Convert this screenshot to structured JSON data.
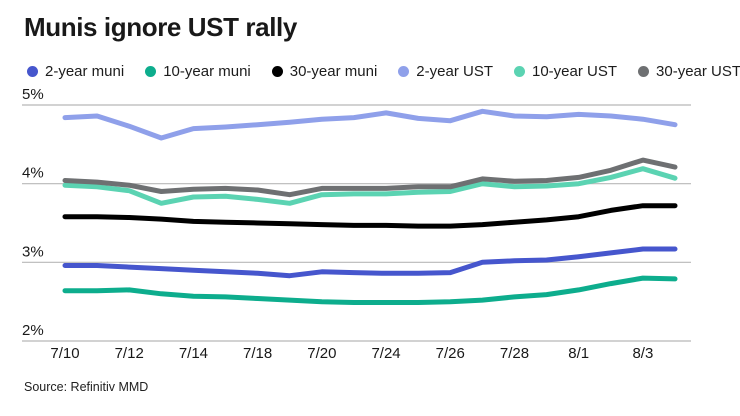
{
  "title": "Munis ignore UST rally",
  "source": "Source: Refinitiv MMD",
  "legend": {
    "items": [
      {
        "label": "2-year muni",
        "color": "#4656cd"
      },
      {
        "label": "10-year muni",
        "color": "#0dad8d"
      },
      {
        "label": "30-year muni",
        "color": "#000000"
      },
      {
        "label": "2-year UST",
        "color": "#8fa0ea"
      },
      {
        "label": "10-year UST",
        "color": "#5bd3b2"
      },
      {
        "label": "30-year UST",
        "color": "#6e7072"
      }
    ]
  },
  "chart_data": {
    "type": "line",
    "title": "Munis ignore UST rally",
    "unit": "%",
    "ylim": [
      2,
      5
    ],
    "grid": "horizontal",
    "grid_color": "#b8b8b8",
    "legend_position": "top",
    "x": [
      "7/10",
      "7/11",
      "7/12",
      "7/13",
      "7/14",
      "7/17",
      "7/18",
      "7/19",
      "7/20",
      "7/21",
      "7/24",
      "7/25",
      "7/26",
      "7/27",
      "7/28",
      "7/31",
      "8/1",
      "8/2",
      "8/3",
      "8/4"
    ],
    "x_ticks": [
      {
        "label": "7/10",
        "index": 0
      },
      {
        "label": "7/12",
        "index": 2
      },
      {
        "label": "7/14",
        "index": 4
      },
      {
        "label": "7/18",
        "index": 6
      },
      {
        "label": "7/20",
        "index": 8
      },
      {
        "label": "7/24",
        "index": 10
      },
      {
        "label": "7/26",
        "index": 12
      },
      {
        "label": "7/28",
        "index": 14
      },
      {
        "label": "8/1",
        "index": 16
      },
      {
        "label": "8/3",
        "index": 18
      }
    ],
    "y_ticks": [
      {
        "label": "5%",
        "value": 5
      },
      {
        "label": "4%",
        "value": 4
      },
      {
        "label": "3%",
        "value": 3
      },
      {
        "label": "2%",
        "value": 2
      }
    ],
    "series": [
      {
        "name": "2-year UST",
        "color": "#8fa0ea",
        "width": 5,
        "values": [
          4.84,
          4.86,
          4.73,
          4.58,
          4.7,
          4.72,
          4.75,
          4.78,
          4.82,
          4.84,
          4.9,
          4.83,
          4.8,
          4.92,
          4.86,
          4.85,
          4.88,
          4.86,
          4.82,
          4.75
        ]
      },
      {
        "name": "10-year UST",
        "color": "#5bd3b2",
        "width": 5,
        "values": [
          3.98,
          3.96,
          3.91,
          3.75,
          3.83,
          3.84,
          3.8,
          3.75,
          3.86,
          3.87,
          3.87,
          3.89,
          3.9,
          4.0,
          3.96,
          3.97,
          4.0,
          4.08,
          4.19,
          4.07
        ]
      },
      {
        "name": "30-year UST",
        "color": "#6e7072",
        "width": 5,
        "values": [
          4.04,
          4.02,
          3.98,
          3.9,
          3.93,
          3.94,
          3.92,
          3.86,
          3.94,
          3.94,
          3.94,
          3.96,
          3.96,
          4.06,
          4.03,
          4.04,
          4.08,
          4.17,
          4.3,
          4.21
        ]
      },
      {
        "name": "30-year muni",
        "color": "#000000",
        "width": 5,
        "values": [
          3.58,
          3.58,
          3.57,
          3.55,
          3.52,
          3.51,
          3.5,
          3.49,
          3.48,
          3.47,
          3.47,
          3.46,
          3.46,
          3.48,
          3.51,
          3.54,
          3.58,
          3.66,
          3.72,
          3.72
        ]
      },
      {
        "name": "10-year muni",
        "color": "#0dad8d",
        "width": 5,
        "values": [
          2.64,
          2.64,
          2.65,
          2.6,
          2.57,
          2.56,
          2.54,
          2.52,
          2.5,
          2.49,
          2.49,
          2.49,
          2.5,
          2.52,
          2.56,
          2.59,
          2.65,
          2.73,
          2.8,
          2.79
        ]
      },
      {
        "name": "2-year muni",
        "color": "#4656cd",
        "width": 5,
        "values": [
          2.96,
          2.96,
          2.94,
          2.92,
          2.9,
          2.88,
          2.86,
          2.83,
          2.88,
          2.87,
          2.86,
          2.86,
          2.87,
          3.0,
          3.02,
          3.03,
          3.07,
          3.12,
          3.17,
          3.17
        ]
      }
    ]
  }
}
